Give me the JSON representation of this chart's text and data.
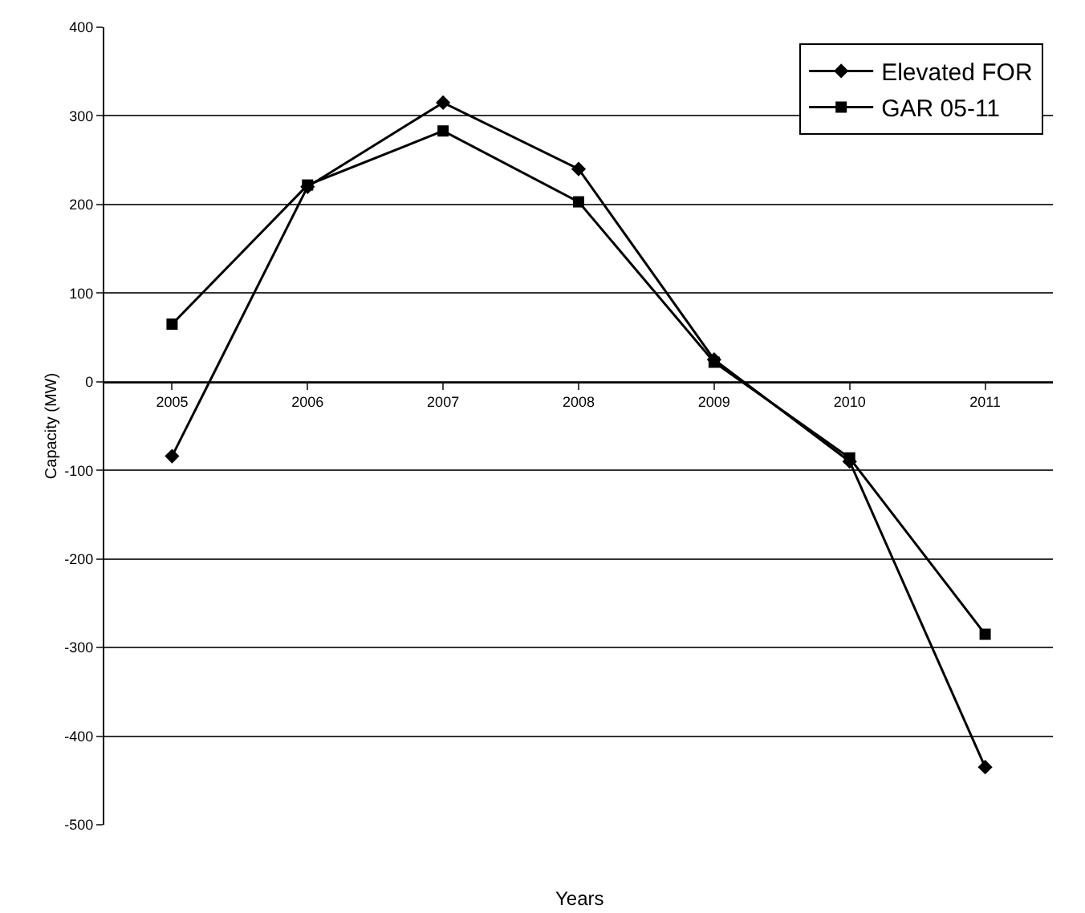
{
  "chart_data": {
    "type": "line",
    "xlabel": "Years",
    "ylabel": "Capacity (MW)",
    "categories": [
      "2005",
      "2006",
      "2007",
      "2008",
      "2009",
      "2010",
      "2011"
    ],
    "series": [
      {
        "name": "Elevated FOR",
        "color": "#000000",
        "marker": "diamond",
        "values": [
          -84,
          220,
          315,
          240,
          25,
          -90,
          -435
        ]
      },
      {
        "name": "GAR 05-11",
        "color": "#000000",
        "marker": "square",
        "values": [
          65,
          222,
          283,
          203,
          22,
          -86,
          -285
        ]
      }
    ],
    "ylim": [
      -500,
      400
    ],
    "yticks": [
      -500,
      -400,
      -300,
      -200,
      -100,
      0,
      100,
      200,
      300,
      400
    ],
    "grid": "y",
    "legend": "top right",
    "line_style": "solid"
  }
}
